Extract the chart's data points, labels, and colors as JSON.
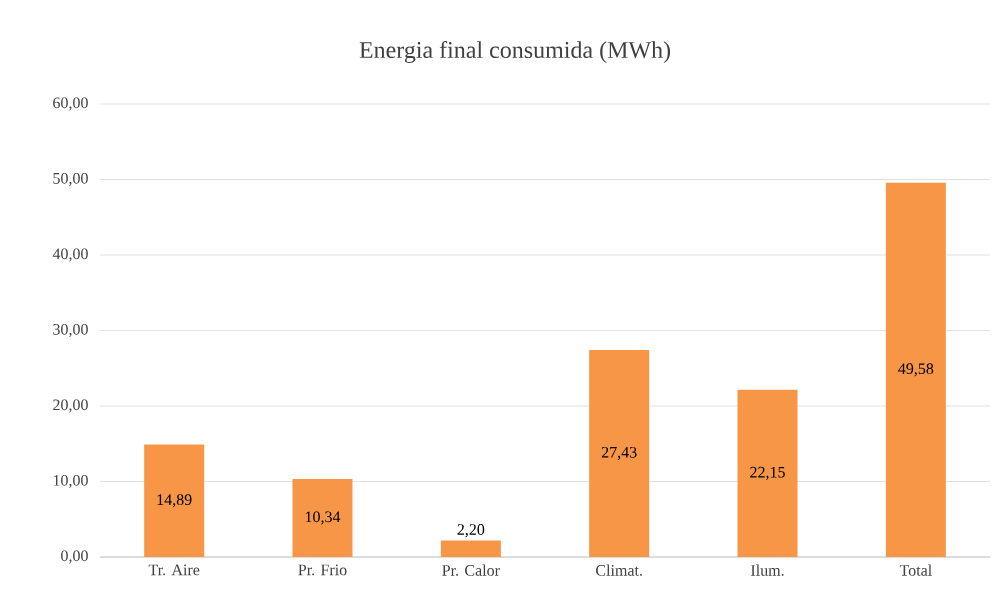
{
  "chart_data": {
    "type": "bar",
    "title": "Energia final consumida (MWh)",
    "categories": [
      "Tr. Aire",
      "Pr. Frio",
      "Pr. Calor",
      "Climat.",
      "Ilum.",
      "Total"
    ],
    "values": [
      14.89,
      10.34,
      2.2,
      27.43,
      22.15,
      49.58
    ],
    "value_labels": [
      "14,89",
      "10,34",
      "2,20",
      "27,43",
      "22,15",
      "49,58"
    ],
    "color": "#f79646",
    "ylim": [
      0,
      60
    ],
    "yticks": [
      {
        "value": 0,
        "label": "0,00"
      },
      {
        "value": 10,
        "label": "10,00"
      },
      {
        "value": 20,
        "label": "20,00"
      },
      {
        "value": 30,
        "label": "30,00"
      },
      {
        "value": 40,
        "label": "40,00"
      },
      {
        "value": 50,
        "label": "50,00"
      },
      {
        "value": 60,
        "label": "60,00"
      }
    ],
    "grid": "y"
  }
}
